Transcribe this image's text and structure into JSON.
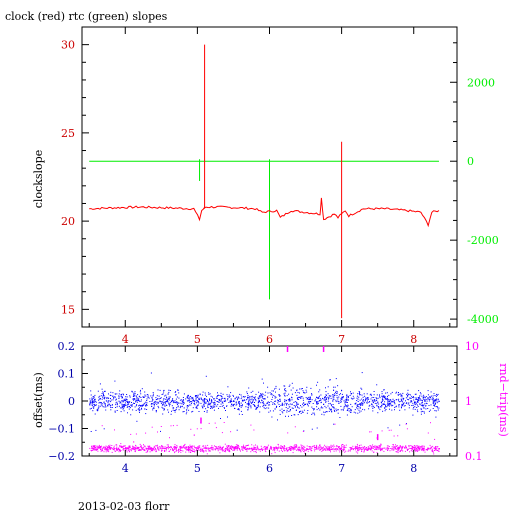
{
  "title": "clock (red) rtc (green) slopes",
  "footer": "2013-02-03 florr",
  "colors": {
    "clock": "#ff0000",
    "rtc": "#00ee00",
    "offset": "#0000ff",
    "rtt": "#ff00ff",
    "axis": "#000000",
    "left_ticks_top": "#cc0000",
    "x_ticks": "#cc0000",
    "x_ticks_bottom": "#0000aa"
  },
  "chart_data": [
    {
      "type": "line",
      "title": "clock (red) rtc (green) slopes",
      "xlim": [
        3.4,
        8.6
      ],
      "x_ticks": [
        "4",
        "5",
        "6",
        "7",
        "8"
      ],
      "ylabel": "clockslope",
      "ylim": [
        14,
        31
      ],
      "y_ticks": [
        "15",
        "20",
        "25",
        "30"
      ],
      "y2lim": [
        -4200,
        3400
      ],
      "y2_ticks": [
        "-4000",
        "-2000",
        "0",
        "2000"
      ],
      "grid": false,
      "series": [
        {
          "name": "clock",
          "axis": "left",
          "x": [
            3.5,
            3.8,
            4.2,
            4.6,
            4.95,
            5.03,
            5.06,
            5.1,
            5.12,
            5.3,
            5.6,
            5.8,
            5.9,
            6.1,
            6.15,
            6.3,
            6.5,
            6.7,
            6.72,
            6.75,
            6.9,
            6.95,
            7.05,
            7.1,
            7.3,
            7.6,
            7.9,
            8.1,
            8.2,
            8.25,
            8.35
          ],
          "y": [
            20.7,
            20.75,
            20.8,
            20.75,
            20.7,
            20.1,
            20.6,
            20.75,
            20.8,
            20.8,
            20.75,
            20.7,
            20.5,
            20.6,
            20.2,
            20.6,
            20.5,
            20.4,
            21.3,
            20.1,
            20.4,
            20.2,
            20.6,
            20.3,
            20.7,
            20.7,
            20.6,
            20.5,
            19.8,
            20.5,
            20.6
          ],
          "spikes": [
            {
              "x": 5.1,
              "y_min": 20.7,
              "y_max": 30.0
            },
            {
              "x": 7.0,
              "y_min": 14.5,
              "y_max": 24.5
            }
          ]
        },
        {
          "name": "rtc",
          "axis": "right",
          "x": [
            3.5,
            8.35
          ],
          "y": [
            0,
            0
          ],
          "spikes": [
            {
              "x": 5.03,
              "y_min": -500,
              "y_max": 50
            },
            {
              "x": 6.0,
              "y_min": -3500,
              "y_max": 50
            }
          ]
        }
      ]
    },
    {
      "type": "scatter",
      "xlim": [
        3.4,
        8.6
      ],
      "x_ticks": [
        "4",
        "5",
        "6",
        "7",
        "8"
      ],
      "ylabel": "offset(ms)",
      "ylim": [
        -0.2,
        0.2
      ],
      "y_ticks": [
        "0.2",
        "0.1",
        "0",
        "−0.1",
        "−0.2"
      ],
      "y2label": "rnd−trip(ms)",
      "y2_scale": "log",
      "y2lim": [
        0.1,
        10
      ],
      "y2_ticks": [
        "10",
        "1",
        "0.1"
      ],
      "series": [
        {
          "name": "offset",
          "axis": "left",
          "x_range": [
            3.5,
            8.35
          ],
          "center": 0.0,
          "spread": 0.03
        },
        {
          "name": "rnd-trip",
          "axis": "right",
          "x_range": [
            3.5,
            8.35
          ],
          "center": 0.14,
          "spread": 0.02,
          "outliers": [
            [
              6.25,
              10
            ],
            [
              6.75,
              10
            ],
            [
              5.05,
              0.5
            ],
            [
              7.5,
              0.25
            ]
          ]
        }
      ]
    }
  ]
}
